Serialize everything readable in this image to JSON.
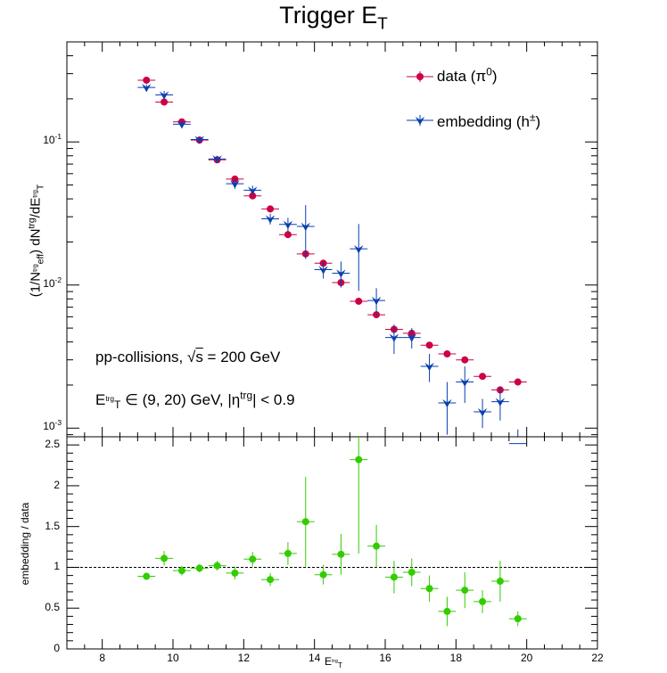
{
  "chart_data": [
    {
      "type": "scatter",
      "panel": "top",
      "title": "Trigger E_T",
      "ylabel": "(1/N_eff^trg) dN^trg/dE_T^trg",
      "yscale": "log",
      "ylim": [
        0.00087,
        0.5
      ],
      "xlim": [
        7,
        22
      ],
      "legend_position": "top-right",
      "ytick_labels": [
        {
          "value": 0.1,
          "mant": "10",
          "exp": "-1"
        },
        {
          "value": 0.01,
          "mant": "10",
          "exp": "-2"
        },
        {
          "value": 0.001,
          "mant": "10",
          "exp": "-3"
        }
      ],
      "annotations": [
        "pp-collisions, √s = 200 GeV",
        "E_T^trg ∈ (9, 20) GeV, |η^trg| < 0.9"
      ],
      "series": [
        {
          "name": "data (π0)",
          "color": "#cc0044",
          "marker": "circle",
          "points": [
            {
              "x": 9.25,
              "y": 0.27,
              "yerr": 0.01
            },
            {
              "x": 9.75,
              "y": 0.19,
              "yerr": 0.008
            },
            {
              "x": 10.25,
              "y": 0.138,
              "yerr": 0.005
            },
            {
              "x": 10.75,
              "y": 0.103,
              "yerr": 0.003
            },
            {
              "x": 11.25,
              "y": 0.075,
              "yerr": 0.002
            },
            {
              "x": 11.75,
              "y": 0.055,
              "yerr": 0.002
            },
            {
              "x": 12.25,
              "y": 0.042,
              "yerr": 0.0015
            },
            {
              "x": 12.75,
              "y": 0.034,
              "yerr": 0.0012
            },
            {
              "x": 13.25,
              "y": 0.0225,
              "yerr": 0.0009
            },
            {
              "x": 13.75,
              "y": 0.0165,
              "yerr": 0.0007
            },
            {
              "x": 14.25,
              "y": 0.0142,
              "yerr": 0.0006
            },
            {
              "x": 14.75,
              "y": 0.0104,
              "yerr": 0.0004
            },
            {
              "x": 15.25,
              "y": 0.0077,
              "yerr": 0.0003
            },
            {
              "x": 15.75,
              "y": 0.0062,
              "yerr": 0.00025
            },
            {
              "x": 16.25,
              "y": 0.0049,
              "yerr": 0.0002
            },
            {
              "x": 16.75,
              "y": 0.0046,
              "yerr": 0.0002
            },
            {
              "x": 17.25,
              "y": 0.0038,
              "yerr": 0.00015
            },
            {
              "x": 17.75,
              "y": 0.0033,
              "yerr": 0.00014
            },
            {
              "x": 18.25,
              "y": 0.003,
              "yerr": 0.00013
            },
            {
              "x": 18.75,
              "y": 0.0023,
              "yerr": 0.00011
            },
            {
              "x": 19.25,
              "y": 0.00185,
              "yerr": 0.0001
            },
            {
              "x": 19.75,
              "y": 0.0021,
              "yerr": 0.0001
            }
          ]
        },
        {
          "name": "embedding (h±)",
          "color": "#0a3fb0",
          "marker": "triangle-down",
          "points": [
            {
              "x": 9.25,
              "y": 0.24,
              "yerr": 0.012
            },
            {
              "x": 9.75,
              "y": 0.213,
              "yerr": 0.014
            },
            {
              "x": 10.25,
              "y": 0.133,
              "yerr": 0.007
            },
            {
              "x": 10.75,
              "y": 0.104,
              "yerr": 0.005
            },
            {
              "x": 11.25,
              "y": 0.076,
              "yerr": 0.004
            },
            {
              "x": 11.75,
              "y": 0.051,
              "yerr": 0.004
            },
            {
              "x": 12.25,
              "y": 0.046,
              "yerr": 0.0035
            },
            {
              "x": 12.75,
              "y": 0.029,
              "yerr": 0.0025
            },
            {
              "x": 13.25,
              "y": 0.0265,
              "yerr": 0.003
            },
            {
              "x": 13.75,
              "y": 0.0257,
              "yerr": 0.0105
            },
            {
              "x": 14.25,
              "y": 0.0128,
              "yerr": 0.0017
            },
            {
              "x": 14.75,
              "y": 0.0121,
              "yerr": 0.0025
            },
            {
              "x": 15.25,
              "y": 0.0179,
              "yerr": 0.0088
            },
            {
              "x": 15.75,
              "y": 0.0078,
              "yerr": 0.0017
            },
            {
              "x": 16.25,
              "y": 0.0043,
              "yerr": 0.001
            },
            {
              "x": 16.75,
              "y": 0.0043,
              "yerr": 0.0007
            },
            {
              "x": 17.25,
              "y": 0.0027,
              "yerr": 0.0006
            },
            {
              "x": 17.75,
              "y": 0.0015,
              "yerr": 0.0006
            },
            {
              "x": 18.25,
              "y": 0.0021,
              "yerr": 0.0006
            },
            {
              "x": 18.75,
              "y": 0.0013,
              "yerr": 0.0003
            },
            {
              "x": 19.25,
              "y": 0.00153,
              "yerr": 0.0004
            },
            {
              "x": 19.75,
              "y": 0.00078,
              "yerr": 0.0002
            }
          ]
        }
      ]
    },
    {
      "type": "scatter",
      "panel": "bottom",
      "ylabel": "embedding / data",
      "xlabel": "E_T^trg",
      "ylim": [
        0,
        2.6
      ],
      "xlim": [
        7,
        22
      ],
      "xticks": [
        8,
        10,
        12,
        14,
        16,
        18,
        20,
        22
      ],
      "yticks": [
        0,
        0.5,
        1,
        1.5,
        2,
        2.5
      ],
      "xtick_labels": [
        "8",
        "10",
        "12",
        "14",
        "16",
        "18",
        "20",
        "22"
      ],
      "ytick_labels": [
        "0",
        "0.5",
        "1",
        "1.5",
        "2",
        "2.5"
      ],
      "reference_line": 1,
      "series": [
        {
          "name": "embedding / data",
          "color": "#33cc00",
          "marker": "circle",
          "points": [
            {
              "x": 9.25,
              "y": 0.89,
              "yerr": 0.04
            },
            {
              "x": 9.75,
              "y": 1.11,
              "yerr": 0.09
            },
            {
              "x": 10.25,
              "y": 0.96,
              "yerr": 0.06
            },
            {
              "x": 10.75,
              "y": 0.99,
              "yerr": 0.05
            },
            {
              "x": 11.25,
              "y": 1.02,
              "yerr": 0.06
            },
            {
              "x": 11.75,
              "y": 0.93,
              "yerr": 0.08
            },
            {
              "x": 12.25,
              "y": 1.1,
              "yerr": 0.09
            },
            {
              "x": 12.75,
              "y": 0.85,
              "yerr": 0.08
            },
            {
              "x": 13.25,
              "y": 1.17,
              "yerr": 0.14
            },
            {
              "x": 13.75,
              "y": 1.56,
              "yerr": 0.55
            },
            {
              "x": 14.25,
              "y": 0.91,
              "yerr": 0.12
            },
            {
              "x": 14.75,
              "y": 1.16,
              "yerr": 0.25
            },
            {
              "x": 15.25,
              "y": 2.32,
              "yerr": 1.15
            },
            {
              "x": 15.75,
              "y": 1.26,
              "yerr": 0.26
            },
            {
              "x": 16.25,
              "y": 0.88,
              "yerr": 0.2
            },
            {
              "x": 16.75,
              "y": 0.94,
              "yerr": 0.17
            },
            {
              "x": 17.25,
              "y": 0.74,
              "yerr": 0.16
            },
            {
              "x": 17.75,
              "y": 0.46,
              "yerr": 0.18
            },
            {
              "x": 18.25,
              "y": 0.72,
              "yerr": 0.22
            },
            {
              "x": 18.75,
              "y": 0.58,
              "yerr": 0.14
            },
            {
              "x": 19.25,
              "y": 0.83,
              "yerr": 0.25
            },
            {
              "x": 19.75,
              "y": 0.37,
              "yerr": 0.09
            }
          ]
        }
      ]
    }
  ]
}
